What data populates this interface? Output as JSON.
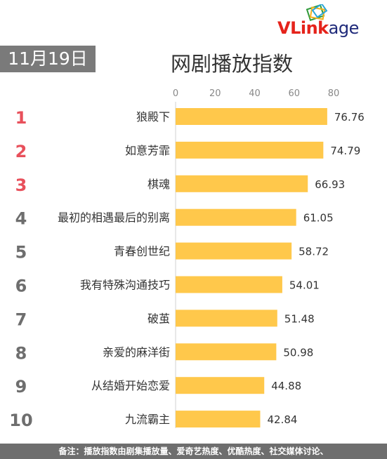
{
  "header": {
    "brand_v": "V",
    "brand_rest": "Link",
    "brand_tail": "age",
    "date": "11月19日",
    "title": "网剧播放指数"
  },
  "colors": {
    "bar": "#ffc84b",
    "rank_top": "#e8505b",
    "rank_rest": "#6e6e6e",
    "label": "#333333",
    "axis": "#888888"
  },
  "chart_data": {
    "type": "bar",
    "orientation": "horizontal",
    "xlim": [
      0,
      80
    ],
    "xticks": [
      0,
      20,
      40,
      60,
      80
    ],
    "ranks": [
      "1",
      "2",
      "3",
      "4",
      "5",
      "6",
      "7",
      "8",
      "9",
      "10"
    ],
    "categories": [
      "狼殿下",
      "如意芳霏",
      "棋魂",
      "最初的相遇最后的别离",
      "青春创世纪",
      "我有特殊沟通技巧",
      "破茧",
      "亲爱的麻洋街",
      "从结婚开始恋爱",
      "九流霸主"
    ],
    "values": [
      76.76,
      74.79,
      66.93,
      61.05,
      58.72,
      54.01,
      51.48,
      50.98,
      44.88,
      42.84
    ],
    "value_labels": [
      "76.76",
      "74.79",
      "66.93",
      "61.05",
      "58.72",
      "54.01",
      "51.48",
      "50.98",
      "44.88",
      "42.84"
    ]
  },
  "footer": {
    "note": "备注：播放指数由剧集播放量、爱奇艺热度、优酷热度、社交媒体讨论、"
  }
}
